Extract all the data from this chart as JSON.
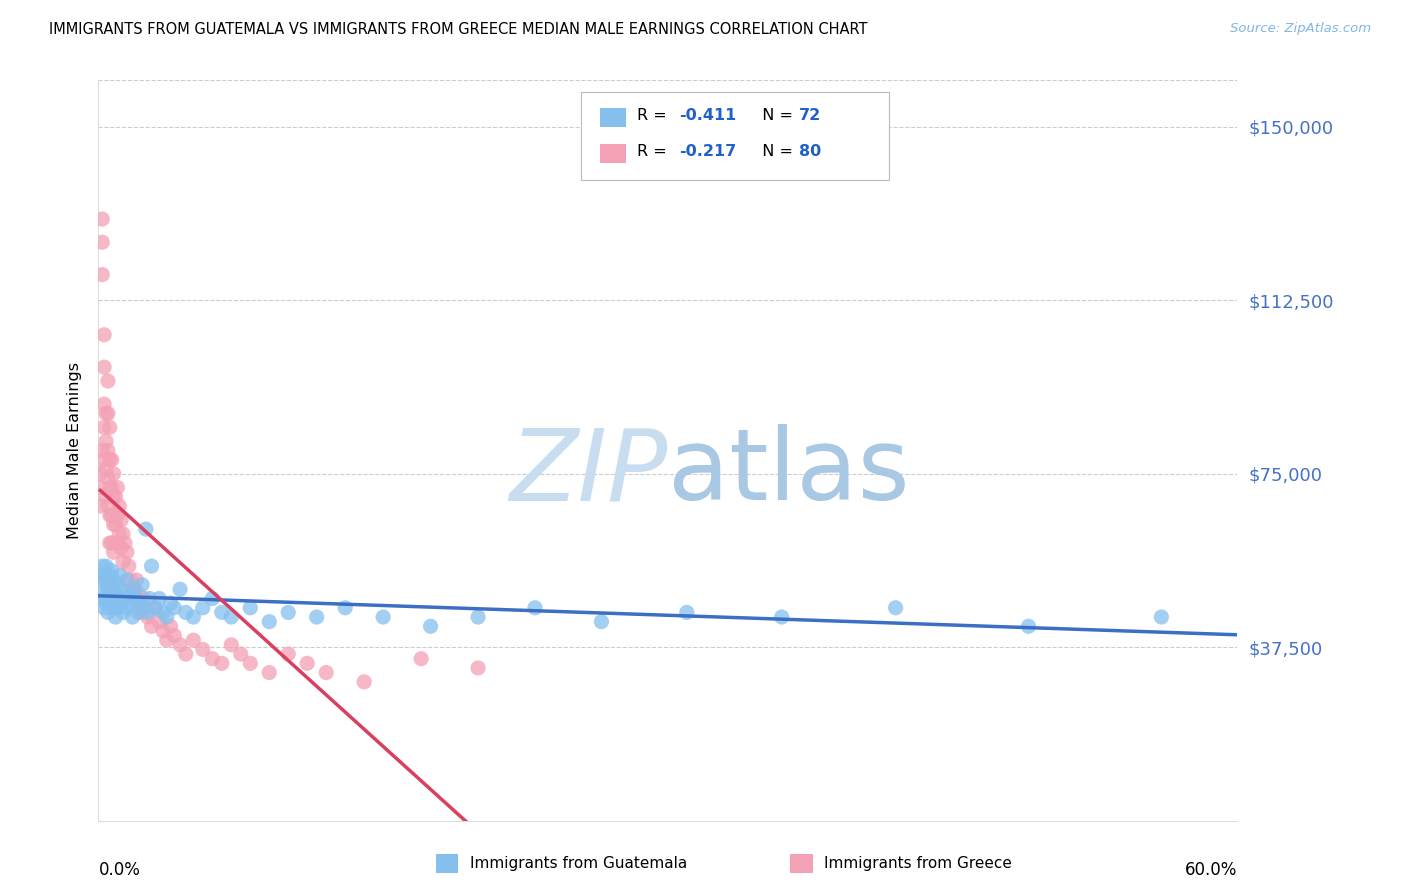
{
  "title": "IMMIGRANTS FROM GUATEMALA VS IMMIGRANTS FROM GREECE MEDIAN MALE EARNINGS CORRELATION CHART",
  "source": "Source: ZipAtlas.com",
  "ylabel": "Median Male Earnings",
  "yticks": [
    0,
    37500,
    75000,
    112500,
    150000
  ],
  "ytick_labels": [
    "",
    "$37,500",
    "$75,000",
    "$112,500",
    "$150,000"
  ],
  "xlim": [
    0.0,
    0.6
  ],
  "ylim": [
    0,
    160000
  ],
  "color_guatemala": "#85bfee",
  "color_greece": "#f4a0b5",
  "trend_color_guatemala": "#3a6fc4",
  "trend_color_greece": "#d94060",
  "trend_color_grey": "#ddbbcc",
  "legend_label_guatemala": "Immigrants from Guatemala",
  "legend_label_greece": "Immigrants from Greece",
  "guatemala_x": [
    0.001,
    0.002,
    0.002,
    0.003,
    0.003,
    0.003,
    0.004,
    0.004,
    0.004,
    0.005,
    0.005,
    0.005,
    0.006,
    0.006,
    0.007,
    0.007,
    0.007,
    0.008,
    0.008,
    0.009,
    0.009,
    0.01,
    0.01,
    0.011,
    0.011,
    0.012,
    0.012,
    0.013,
    0.014,
    0.015,
    0.015,
    0.016,
    0.017,
    0.018,
    0.019,
    0.02,
    0.021,
    0.022,
    0.023,
    0.024,
    0.025,
    0.026,
    0.027,
    0.028,
    0.03,
    0.032,
    0.034,
    0.036,
    0.038,
    0.04,
    0.043,
    0.046,
    0.05,
    0.055,
    0.06,
    0.065,
    0.07,
    0.08,
    0.09,
    0.1,
    0.115,
    0.13,
    0.15,
    0.175,
    0.2,
    0.23,
    0.265,
    0.31,
    0.36,
    0.42,
    0.49,
    0.56
  ],
  "guatemala_y": [
    52000,
    49000,
    55000,
    48000,
    53000,
    46000,
    52000,
    47000,
    55000,
    50000,
    45000,
    51000,
    48000,
    53000,
    46000,
    50000,
    54000,
    47000,
    52000,
    49000,
    44000,
    51000,
    46000,
    48000,
    53000,
    47000,
    50000,
    45000,
    48000,
    52000,
    46000,
    49000,
    47000,
    44000,
    50000,
    48000,
    45000,
    47000,
    51000,
    46000,
    63000,
    45000,
    48000,
    55000,
    46000,
    48000,
    45000,
    44000,
    47000,
    46000,
    50000,
    45000,
    44000,
    46000,
    48000,
    45000,
    44000,
    46000,
    43000,
    45000,
    44000,
    46000,
    44000,
    42000,
    44000,
    46000,
    43000,
    45000,
    44000,
    46000,
    42000,
    44000
  ],
  "greece_x": [
    0.001,
    0.001,
    0.001,
    0.002,
    0.002,
    0.002,
    0.002,
    0.003,
    0.003,
    0.003,
    0.003,
    0.003,
    0.004,
    0.004,
    0.004,
    0.004,
    0.005,
    0.005,
    0.005,
    0.005,
    0.005,
    0.006,
    0.006,
    0.006,
    0.006,
    0.006,
    0.007,
    0.007,
    0.007,
    0.007,
    0.008,
    0.008,
    0.008,
    0.008,
    0.009,
    0.009,
    0.01,
    0.01,
    0.01,
    0.011,
    0.011,
    0.012,
    0.012,
    0.013,
    0.013,
    0.014,
    0.015,
    0.016,
    0.017,
    0.018,
    0.019,
    0.02,
    0.021,
    0.022,
    0.023,
    0.024,
    0.026,
    0.028,
    0.03,
    0.032,
    0.034,
    0.036,
    0.038,
    0.04,
    0.043,
    0.046,
    0.05,
    0.055,
    0.06,
    0.065,
    0.07,
    0.075,
    0.08,
    0.09,
    0.1,
    0.11,
    0.12,
    0.14,
    0.17,
    0.2
  ],
  "greece_y": [
    75000,
    72000,
    68000,
    130000,
    125000,
    118000,
    80000,
    105000,
    98000,
    90000,
    85000,
    78000,
    88000,
    82000,
    76000,
    70000,
    95000,
    88000,
    80000,
    74000,
    68000,
    85000,
    78000,
    72000,
    66000,
    60000,
    78000,
    72000,
    66000,
    60000,
    75000,
    70000,
    64000,
    58000,
    70000,
    64000,
    72000,
    66000,
    60000,
    68000,
    62000,
    65000,
    59000,
    62000,
    56000,
    60000,
    58000,
    55000,
    52000,
    50000,
    48000,
    52000,
    49000,
    47000,
    45000,
    48000,
    44000,
    42000,
    46000,
    43000,
    41000,
    39000,
    42000,
    40000,
    38000,
    36000,
    39000,
    37000,
    35000,
    34000,
    38000,
    36000,
    34000,
    32000,
    36000,
    34000,
    32000,
    30000,
    35000,
    33000
  ]
}
